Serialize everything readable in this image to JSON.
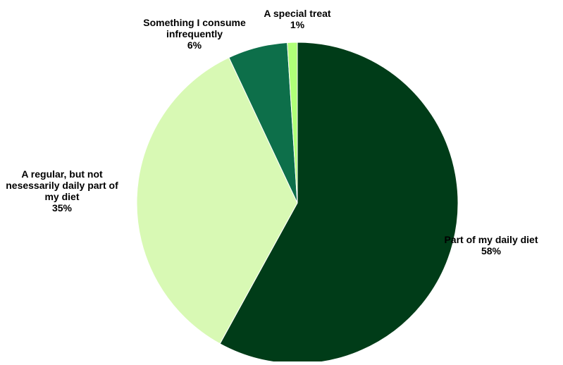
{
  "chart_data": {
    "type": "pie",
    "title": "",
    "start_angle_deg": 90,
    "direction": "clockwise",
    "legend": "none",
    "slices": [
      {
        "label_lines": [
          "Part of my daily diet"
        ],
        "value": 58,
        "value_label": "58%",
        "color": "#003c18"
      },
      {
        "label_lines": [
          "A regular, but not",
          "nesessarily daily part of",
          "my diet"
        ],
        "value": 35,
        "value_label": "35%",
        "color": "#d8f9b4"
      },
      {
        "label_lines": [
          "Something I consume",
          "infrequently"
        ],
        "value": 6,
        "value_label": "6%",
        "color": "#0d6f4a"
      },
      {
        "label_lines": [
          "A special treat"
        ],
        "value": 1,
        "value_label": "1%",
        "color": "#b0ff78"
      }
    ]
  }
}
